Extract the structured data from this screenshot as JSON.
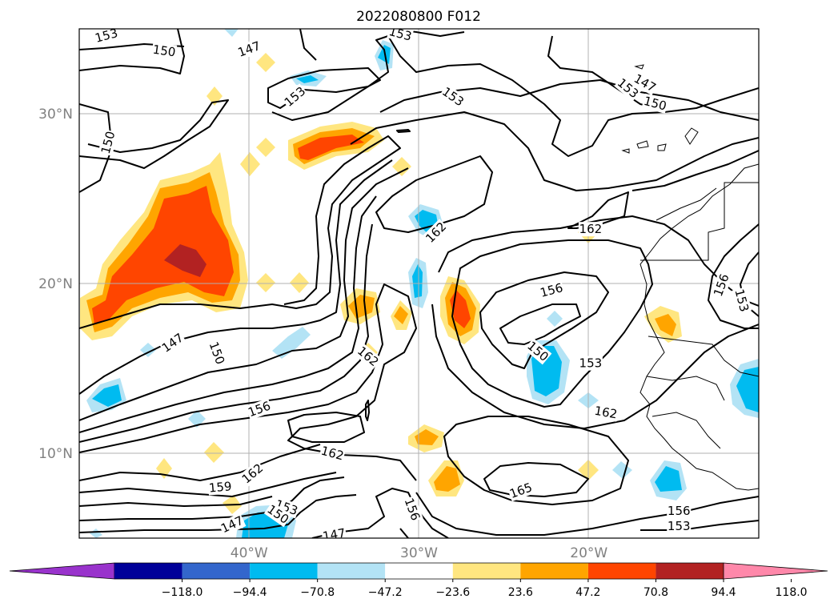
{
  "title": "2022080800 F012",
  "map": {
    "lon_range": [
      -50,
      -10
    ],
    "lat_range": [
      5,
      35
    ],
    "lat_labels": [
      {
        "lat": 30,
        "text": "30°N"
      },
      {
        "lat": 20,
        "text": "20°N"
      },
      {
        "lat": 10,
        "text": "10°N"
      }
    ],
    "lon_labels": [
      {
        "lon": -40,
        "text": "40°W"
      },
      {
        "lon": -30,
        "text": "30°W"
      },
      {
        "lon": -20,
        "text": "20°W"
      }
    ],
    "grid": true
  },
  "contour_labels": [
    {
      "lon": -48.4,
      "lat": 34.6,
      "text": "153",
      "rot": -15
    },
    {
      "lon": -45.0,
      "lat": 33.7,
      "text": "150",
      "rot": 8
    },
    {
      "lon": -40.0,
      "lat": 33.8,
      "text": "147",
      "rot": -20
    },
    {
      "lon": -37.3,
      "lat": 31.0,
      "text": "153",
      "rot": -40
    },
    {
      "lon": -48.3,
      "lat": 28.3,
      "text": "150",
      "rot": -75
    },
    {
      "lon": -31.1,
      "lat": 34.7,
      "text": "153",
      "rot": 15
    },
    {
      "lon": -28.0,
      "lat": 31.0,
      "text": "153",
      "rot": 35
    },
    {
      "lon": -29.0,
      "lat": 23.0,
      "text": "162",
      "rot": -45
    },
    {
      "lon": -19.9,
      "lat": 23.2,
      "text": "162",
      "rot": 0
    },
    {
      "lon": -17.7,
      "lat": 31.5,
      "text": "153",
      "rot": 40
    },
    {
      "lon": -16.7,
      "lat": 31.8,
      "text": "147",
      "rot": 30
    },
    {
      "lon": -16.1,
      "lat": 30.6,
      "text": "150",
      "rot": 15
    },
    {
      "lon": -22.2,
      "lat": 19.6,
      "text": "156",
      "rot": -15
    },
    {
      "lon": -23.0,
      "lat": 16.0,
      "text": "150",
      "rot": 40
    },
    {
      "lon": -19.9,
      "lat": 15.3,
      "text": "153",
      "rot": 0
    },
    {
      "lon": -12.2,
      "lat": 19.9,
      "text": "156",
      "rot": -70
    },
    {
      "lon": -11.0,
      "lat": 19.0,
      "text": "153",
      "rot": 75
    },
    {
      "lon": -44.5,
      "lat": 16.5,
      "text": "147",
      "rot": -35
    },
    {
      "lon": -41.9,
      "lat": 15.9,
      "text": "150",
      "rot": 70
    },
    {
      "lon": -33.0,
      "lat": 15.7,
      "text": "162",
      "rot": 40
    },
    {
      "lon": -39.4,
      "lat": 12.6,
      "text": "156",
      "rot": -20
    },
    {
      "lon": -19.0,
      "lat": 12.4,
      "text": "162",
      "rot": 10
    },
    {
      "lon": -35.1,
      "lat": 10.0,
      "text": "162",
      "rot": 15
    },
    {
      "lon": -39.8,
      "lat": 8.8,
      "text": "162",
      "rot": -40
    },
    {
      "lon": -41.7,
      "lat": 8.0,
      "text": "159",
      "rot": -5
    },
    {
      "lon": -37.8,
      "lat": 6.8,
      "text": "153",
      "rot": 20
    },
    {
      "lon": -38.3,
      "lat": 6.4,
      "text": "150",
      "rot": 35
    },
    {
      "lon": -41.0,
      "lat": 5.8,
      "text": "147",
      "rot": -25
    },
    {
      "lon": -35.0,
      "lat": 5.2,
      "text": "147",
      "rot": -10
    },
    {
      "lon": -30.4,
      "lat": 6.7,
      "text": "156",
      "rot": 70
    },
    {
      "lon": -24.0,
      "lat": 7.8,
      "text": "165",
      "rot": -20
    },
    {
      "lon": -14.7,
      "lat": 6.6,
      "text": "156",
      "rot": 0
    },
    {
      "lon": -14.7,
      "lat": 5.7,
      "text": "153",
      "rot": 0
    }
  ],
  "colorbar": {
    "levels": [
      "−118.0",
      "−94.4",
      "−70.8",
      "−47.2",
      "−23.6",
      "23.6",
      "47.2",
      "70.8",
      "94.4",
      "118.0"
    ],
    "colors": [
      "#9933cc",
      "#000099",
      "#3366cc",
      "#00bbf0",
      "#b3e3f5",
      "#ffffff",
      "#ffe680",
      "#ffa500",
      "#ff4500",
      "#b22222",
      "#ff88aa"
    ]
  }
}
